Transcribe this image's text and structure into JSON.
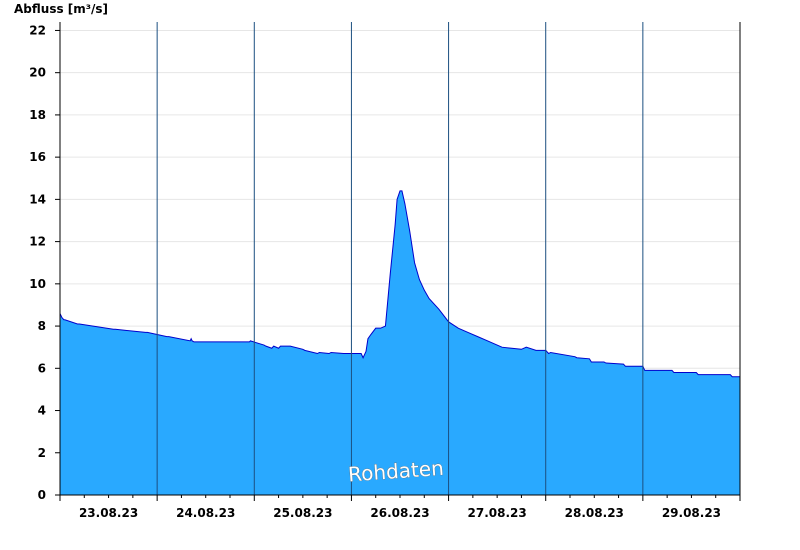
{
  "chart_data": {
    "type": "area",
    "ylabel": "Abfluss [m³/s]",
    "watermark": "Rohdaten",
    "xlim": [
      0,
      7
    ],
    "ylim": [
      0,
      22.4
    ],
    "yticks": [
      0,
      2,
      4,
      6,
      8,
      10,
      12,
      14,
      16,
      18,
      20,
      22
    ],
    "day_labels": [
      "23.08.23",
      "24.08.23",
      "25.08.23",
      "26.08.23",
      "27.08.23",
      "28.08.23",
      "29.08.23"
    ],
    "grid": true,
    "fill_color": "#29a9ff",
    "line_color": "#0000cc",
    "series": [
      {
        "x": [
          0,
          0.02,
          0.04,
          0.05,
          0.18,
          0.2,
          0.55,
          0.57,
          0.88,
          0.9,
          1.1,
          1.12,
          1.34,
          1.35,
          1.36,
          1.38,
          1.95,
          1.96,
          2.1,
          2.12,
          2.18,
          2.2,
          2.25,
          2.27,
          2.35,
          2.37,
          2.5,
          2.52,
          2.65,
          2.67,
          2.77,
          2.79,
          2.92,
          2.95,
          2.97,
          3.1,
          3.12,
          3.15,
          3.17,
          3.2,
          3.25,
          3.3,
          3.35,
          3.4,
          3.45,
          3.47,
          3.5,
          3.52,
          3.55,
          3.6,
          3.65,
          3.7,
          3.75,
          3.8,
          3.9,
          4.0,
          4.1,
          4.2,
          4.3,
          4.4,
          4.5,
          4.55,
          4.65,
          4.75,
          4.8,
          4.9,
          4.95,
          5.0,
          5.03,
          5.05,
          5.3,
          5.32,
          5.45,
          5.47,
          5.6,
          5.62,
          5.8,
          5.82,
          6.0,
          6.02,
          6.3,
          6.32,
          6.55,
          6.57,
          6.9,
          6.92,
          7.0
        ],
        "y": [
          8.6,
          8.4,
          8.3,
          8.3,
          8.1,
          8.1,
          7.85,
          7.85,
          7.7,
          7.7,
          7.5,
          7.5,
          7.3,
          7.4,
          7.3,
          7.25,
          7.25,
          7.3,
          7.1,
          7.05,
          6.95,
          7.05,
          6.95,
          7.05,
          7.05,
          7.05,
          6.9,
          6.85,
          6.7,
          6.75,
          6.7,
          6.75,
          6.7,
          6.7,
          6.7,
          6.7,
          6.5,
          6.8,
          7.4,
          7.6,
          7.9,
          7.9,
          8.0,
          10.5,
          12.8,
          14.0,
          14.4,
          14.4,
          13.8,
          12.5,
          11.0,
          10.2,
          9.7,
          9.3,
          8.8,
          8.2,
          7.9,
          7.7,
          7.5,
          7.3,
          7.1,
          7.0,
          6.95,
          6.9,
          7.0,
          6.85,
          6.85,
          6.85,
          6.7,
          6.75,
          6.55,
          6.5,
          6.45,
          6.3,
          6.3,
          6.25,
          6.2,
          6.1,
          6.1,
          5.9,
          5.9,
          5.8,
          5.8,
          5.7,
          5.7,
          5.6,
          5.6
        ]
      }
    ]
  }
}
